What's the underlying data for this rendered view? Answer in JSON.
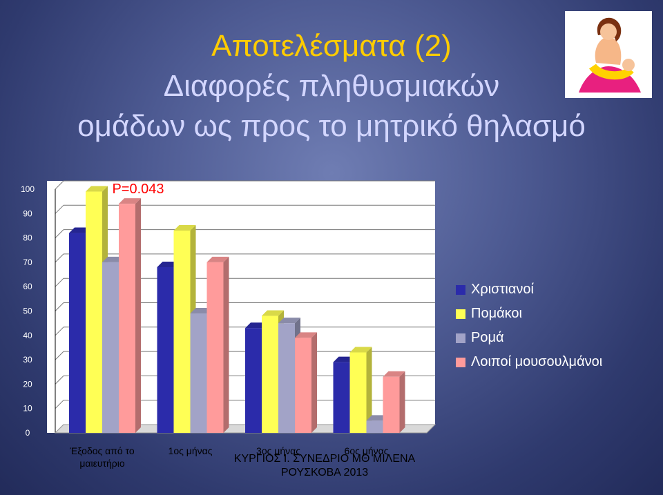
{
  "title": {
    "line1": "Αποτελέσματα (2)",
    "line2": "Διαφορές πληθυσμιακών",
    "line3": "ομάδων ως προς το μητρικό θηλασμό"
  },
  "footer": {
    "line1": "ΚΥΡΓΙΟΣ Ι. ΣΥΝΕΔΡΙΟ ΜΘ ΜΙΛΕΝΑ",
    "line2": "ΡΟΥΣΚΟΒΑ 2013"
  },
  "logo_icon": "breastfeeding-mother-icon",
  "chart_data": {
    "type": "bar",
    "title": "",
    "xlabel": "",
    "ylabel": "",
    "ylim": [
      0,
      100
    ],
    "y_ticks": [
      0,
      10,
      20,
      30,
      40,
      50,
      60,
      70,
      80,
      90,
      100
    ],
    "grid": true,
    "legend_position": "right",
    "categories": [
      "Έξοδος από το μαιευτήριο",
      "1ος μήνας",
      "3ος μήνας",
      "6ος μήνας"
    ],
    "category_lines": [
      [
        "Έξοδος από το",
        "μαιευτήριο"
      ],
      [
        "1ος μήνας"
      ],
      [
        "3ος μήνας"
      ],
      [
        "6ος μήνας"
      ]
    ],
    "series": [
      {
        "name": "Χριστιανοί",
        "values": [
          82,
          68,
          43,
          29
        ],
        "color": "#2b2baa"
      },
      {
        "name": "Πομάκοι",
        "values": [
          99,
          83,
          48,
          33
        ],
        "color": "#ffff55"
      },
      {
        "name": "Ρομά",
        "values": [
          70,
          49,
          45,
          5
        ],
        "color": "#a2a3c7"
      },
      {
        "name": "Λοιποί μουσουλμάνοι",
        "values": [
          94,
          70,
          39,
          23
        ],
        "color": "#ff9b9b"
      }
    ],
    "annotation": "P=0.043"
  }
}
